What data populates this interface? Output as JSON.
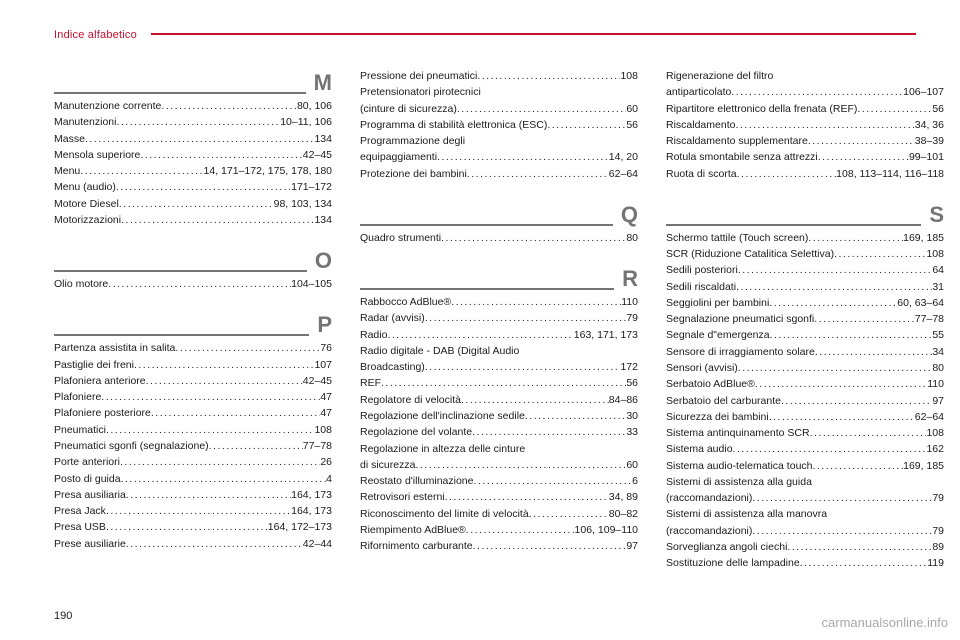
{
  "header": {
    "label": "Indice alfabetico"
  },
  "pageNumber": "190",
  "watermark": "carmanualsonline.info",
  "columns": [
    {
      "groups": [
        {
          "letter": "M",
          "entries": [
            {
              "label": "Manutenzione corrente",
              "pages": "80, 106"
            },
            {
              "label": "Manutenzioni",
              "pages": "10–11, 106"
            },
            {
              "label": "Masse",
              "pages": "134"
            },
            {
              "label": "Mensola superiore",
              "pages": "42–45"
            },
            {
              "label": "Menu",
              "pages": "14, 171–172, 175, 178, 180"
            },
            {
              "label": "Menu (audio)",
              "pages": "171–172"
            },
            {
              "label": "Motore Diesel",
              "pages": "98, 103, 134"
            },
            {
              "label": "Motorizzazioni",
              "pages": "134"
            }
          ]
        },
        {
          "letter": "O",
          "entries": [
            {
              "label": "Olio motore",
              "pages": "104–105"
            }
          ]
        },
        {
          "letter": "P",
          "entries": [
            {
              "label": "Partenza assistita in salita",
              "pages": "76"
            },
            {
              "label": "Pastiglie dei freni",
              "pages": "107"
            },
            {
              "label": "Plafoniera anteriore",
              "pages": "42–45"
            },
            {
              "label": "Plafoniere",
              "pages": "47"
            },
            {
              "label": "Plafoniere posteriore",
              "pages": "47"
            },
            {
              "label": "Pneumatici",
              "pages": "108"
            },
            {
              "label": "Pneumatici sgonfi (segnalazione)",
              "pages": "77–78"
            },
            {
              "label": "Porte anteriori",
              "pages": "26"
            },
            {
              "label": "Posto di guida",
              "pages": "4"
            },
            {
              "label": "Presa ausiliaria",
              "pages": "164, 173"
            },
            {
              "label": "Presa Jack",
              "pages": "164, 173"
            },
            {
              "label": "Presa USB",
              "pages": "164, 172–173"
            },
            {
              "label": "Prese ausiliarie",
              "pages": "42–44"
            }
          ]
        }
      ]
    },
    {
      "groups": [
        {
          "letter": "",
          "entries": [
            {
              "label": "Pressione dei pneumatici",
              "pages": "108"
            },
            {
              "label": "Pretensionatori pirotecnici",
              "cont": true
            },
            {
              "label": "(cinture di sicurezza)",
              "pages": "60"
            },
            {
              "label": "Programma di stabilità elettronica (ESC)",
              "pages": "56"
            },
            {
              "label": "Programmazione degli",
              "cont": true
            },
            {
              "label": "equipaggiamenti",
              "pages": "14, 20"
            },
            {
              "label": "Protezione dei bambini",
              "pages": "62–64"
            }
          ]
        },
        {
          "letter": "Q",
          "entries": [
            {
              "label": "Quadro strumenti",
              "pages": "80"
            }
          ]
        },
        {
          "letter": "R",
          "entries": [
            {
              "label": "Rabbocco AdBlue®",
              "pages": "110"
            },
            {
              "label": "Radar (avvisi)",
              "pages": "79"
            },
            {
              "label": "Radio",
              "pages": "163, 171, 173"
            },
            {
              "label": "Radio digitale - DAB (Digital Audio",
              "cont": true
            },
            {
              "label": "Broadcasting)",
              "pages": "172"
            },
            {
              "label": "REF",
              "pages": "56"
            },
            {
              "label": "Regolatore di velocità",
              "pages": "84–86"
            },
            {
              "label": "Regolazione dell'inclinazione sedile",
              "pages": "30"
            },
            {
              "label": "Regolazione del volante",
              "pages": "33"
            },
            {
              "label": "Regolazione in altezza delle cinture",
              "cont": true
            },
            {
              "label": "di sicurezza",
              "pages": "60"
            },
            {
              "label": "Reostato d'illuminazione",
              "pages": "6"
            },
            {
              "label": "Retrovisori esterni",
              "pages": "34, 89"
            },
            {
              "label": "Riconoscimento del limite di velocità",
              "pages": "80–82"
            },
            {
              "label": "Riempimento AdBlue®",
              "pages": "106, 109–110"
            },
            {
              "label": "Rifornimento carburante",
              "pages": "97"
            }
          ]
        }
      ]
    },
    {
      "groups": [
        {
          "letter": "",
          "entries": [
            {
              "label": "Rigenerazione del filtro",
              "cont": true
            },
            {
              "label": "antiparticolato",
              "pages": "106–107"
            },
            {
              "label": "Ripartitore elettronico della frenata (REF)",
              "pages": "56"
            },
            {
              "label": "Riscaldamento",
              "pages": "34, 36"
            },
            {
              "label": "Riscaldamento supplementare",
              "pages": "38–39"
            },
            {
              "label": "Rotula smontabile senza attrezzi",
              "pages": "99–101"
            },
            {
              "label": "Ruota di scorta",
              "pages": "108, 113–114, 116–118"
            }
          ]
        },
        {
          "letter": "S",
          "entries": [
            {
              "label": "Schermo tattile (Touch screen)",
              "pages": "169, 185"
            },
            {
              "label": "SCR (Riduzione Catalitica Selettiva)",
              "pages": "108"
            },
            {
              "label": "Sedili posteriori",
              "pages": "64"
            },
            {
              "label": "Sedili riscaldati",
              "pages": "31"
            },
            {
              "label": "Seggiolini per bambini",
              "pages": "60, 63–64"
            },
            {
              "label": "Segnalazione pneumatici sgonfi",
              "pages": "77–78"
            },
            {
              "label": "Segnale d\"emergenza",
              "pages": "55"
            },
            {
              "label": "Sensore di irraggiamento solare",
              "pages": "34"
            },
            {
              "label": "Sensori (avvisi)",
              "pages": "80"
            },
            {
              "label": "Serbatoio AdBlue®",
              "pages": "110"
            },
            {
              "label": "Serbatoio del carburante",
              "pages": "97"
            },
            {
              "label": "Sicurezza dei bambini",
              "pages": "62–64"
            },
            {
              "label": "Sistema antinquinamento SCR",
              "pages": "108"
            },
            {
              "label": "Sistema audio",
              "pages": "162"
            },
            {
              "label": "Sistema audio-telematica touch",
              "pages": "169, 185"
            },
            {
              "label": "Sistemi di assistenza alla guida",
              "cont": true
            },
            {
              "label": "(raccomandazioni)",
              "pages": "79"
            },
            {
              "label": "Sistemi di assistenza alla manovra",
              "cont": true
            },
            {
              "label": "(raccomandazioni)",
              "pages": "79"
            },
            {
              "label": "Sorveglianza angoli ciechi",
              "pages": "89"
            },
            {
              "label": "Sostituzione delle lampadine",
              "pages": "119"
            }
          ]
        }
      ]
    }
  ],
  "dotsFill": "...................................................................................................."
}
